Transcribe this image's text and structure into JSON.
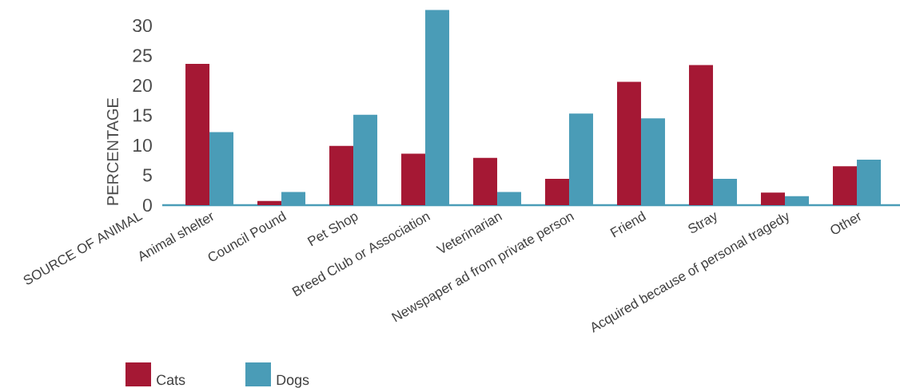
{
  "chart_data": {
    "type": "bar",
    "xlabel": "SOURCE OF ANIMAL",
    "ylabel": "PERCENTAGE",
    "categories": [
      "Animal shelter",
      "Council Pound",
      "Pet Shop",
      "Breed Club or Association",
      "Veterinarian",
      "Newspaper ad from private person",
      "Friend",
      "Stray",
      "Acquired because of personal tragedy",
      "Other"
    ],
    "series": [
      {
        "name": "Cats",
        "color": "#a51834",
        "values": [
          23.6,
          0.7,
          9.9,
          8.6,
          7.9,
          4.4,
          20.6,
          23.4,
          2.1,
          6.5
        ]
      },
      {
        "name": "Dogs",
        "color": "#4a9cb7",
        "values": [
          12.2,
          2.2,
          15.1,
          32.6,
          2.2,
          15.3,
          14.5,
          4.4,
          1.5,
          7.6
        ]
      }
    ],
    "ylim": [
      0,
      33
    ],
    "yticks": [
      0,
      5,
      10,
      15,
      20,
      25,
      30
    ],
    "legend": "bottom left"
  }
}
